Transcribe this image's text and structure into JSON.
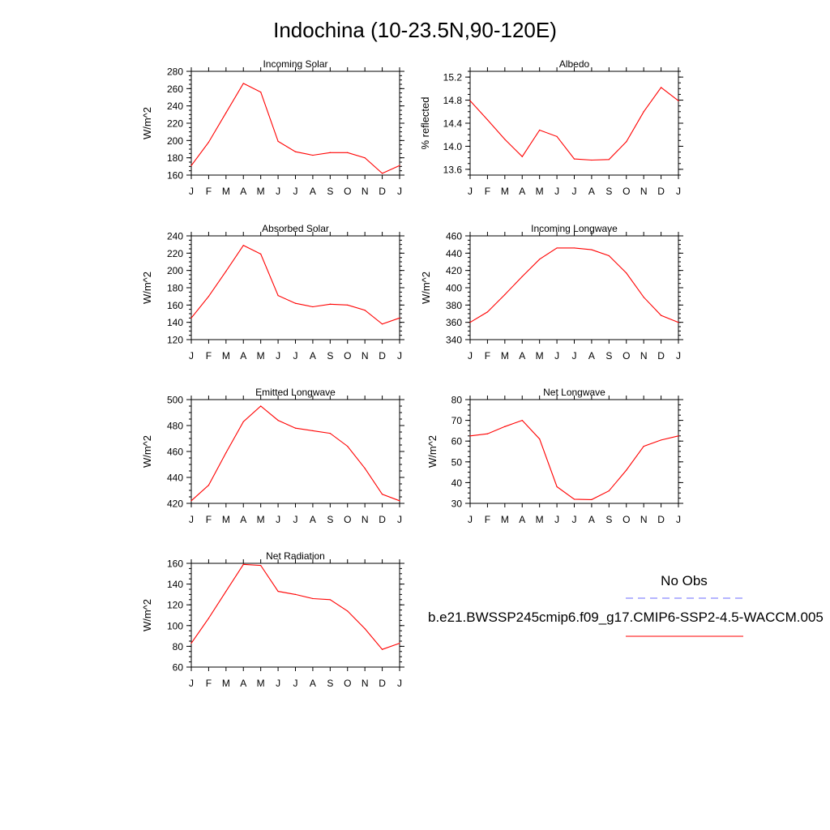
{
  "title": "Indochina (10-23.5N,90-120E)",
  "legend": {
    "obs_label": "No Obs",
    "model_label": "b.e21.BWSSP245cmip6.f09_g17.CMIP6-SSP2-4.5-WACCM.005",
    "obs_color": "#6b6bff",
    "model_color": "#ff0000"
  },
  "chart_data": [
    {
      "type": "line",
      "title": "Incoming Solar",
      "ylabel": "W/m^2",
      "categories": [
        "J",
        "F",
        "M",
        "A",
        "M",
        "J",
        "J",
        "A",
        "S",
        "O",
        "N",
        "D",
        "J"
      ],
      "ylim": [
        160,
        280
      ],
      "yticks": [
        160,
        180,
        200,
        220,
        240,
        260,
        280
      ],
      "ytick_labels": [
        "160",
        "180",
        "200",
        "220",
        "240",
        "260",
        "280"
      ],
      "series": [
        {
          "color": "#ff0000",
          "values": [
            171,
            198,
            232,
            266,
            256,
            199,
            187,
            183,
            186,
            186,
            180,
            162,
            171
          ]
        }
      ]
    },
    {
      "type": "line",
      "title": "Albedo",
      "ylabel": "% reflected",
      "categories": [
        "J",
        "F",
        "M",
        "A",
        "M",
        "J",
        "J",
        "A",
        "S",
        "O",
        "N",
        "D",
        "J"
      ],
      "ylim": [
        13.5,
        15.3
      ],
      "yticks": [
        13.6,
        14.0,
        14.4,
        14.8,
        15.2
      ],
      "ytick_labels": [
        "13.6",
        "14.0",
        "14.4",
        "14.8",
        "15.2"
      ],
      "series": [
        {
          "color": "#ff0000",
          "values": [
            14.79,
            14.46,
            14.12,
            13.82,
            14.28,
            14.17,
            13.78,
            13.76,
            13.77,
            14.08,
            14.6,
            15.02,
            14.79
          ]
        }
      ]
    },
    {
      "type": "line",
      "title": "Absorbed Solar",
      "ylabel": "W/m^2",
      "categories": [
        "J",
        "F",
        "M",
        "A",
        "M",
        "J",
        "J",
        "A",
        "S",
        "O",
        "N",
        "D",
        "J"
      ],
      "ylim": [
        120,
        240
      ],
      "yticks": [
        120,
        140,
        160,
        180,
        200,
        220,
        240
      ],
      "ytick_labels": [
        "120",
        "140",
        "160",
        "180",
        "200",
        "220",
        "240"
      ],
      "series": [
        {
          "color": "#ff0000",
          "values": [
            145,
            170,
            199,
            229,
            219,
            171,
            162,
            158,
            161,
            160,
            154,
            138,
            145
          ]
        }
      ]
    },
    {
      "type": "line",
      "title": "Incoming Longwave",
      "ylabel": "W/m^2",
      "categories": [
        "J",
        "F",
        "M",
        "A",
        "M",
        "J",
        "J",
        "A",
        "S",
        "O",
        "N",
        "D",
        "J"
      ],
      "ylim": [
        340,
        460
      ],
      "yticks": [
        340,
        360,
        380,
        400,
        420,
        440,
        460
      ],
      "ytick_labels": [
        "340",
        "360",
        "380",
        "400",
        "420",
        "440",
        "460"
      ],
      "series": [
        {
          "color": "#ff0000",
          "values": [
            360,
            372,
            392,
            413,
            433,
            446,
            446,
            444,
            437,
            417,
            389,
            368,
            360
          ]
        }
      ]
    },
    {
      "type": "line",
      "title": "Emitted Longwave",
      "ylabel": "W/m^2",
      "categories": [
        "J",
        "F",
        "M",
        "A",
        "M",
        "J",
        "J",
        "A",
        "S",
        "O",
        "N",
        "D",
        "J"
      ],
      "ylim": [
        420,
        500
      ],
      "yticks": [
        420,
        440,
        460,
        480,
        500
      ],
      "ytick_labels": [
        "420",
        "440",
        "460",
        "480",
        "500"
      ],
      "series": [
        {
          "color": "#ff0000",
          "values": [
            422,
            434,
            459,
            483,
            495,
            484,
            478,
            476,
            474,
            464,
            447,
            427,
            422
          ]
        }
      ]
    },
    {
      "type": "line",
      "title": "Net Longwave",
      "ylabel": "W/m^2",
      "categories": [
        "J",
        "F",
        "M",
        "A",
        "M",
        "J",
        "J",
        "A",
        "S",
        "O",
        "N",
        "D",
        "J"
      ],
      "ylim": [
        30,
        80
      ],
      "yticks": [
        30,
        40,
        50,
        60,
        70,
        80
      ],
      "ytick_labels": [
        "30",
        "40",
        "50",
        "60",
        "70",
        "80"
      ],
      "series": [
        {
          "color": "#ff0000",
          "values": [
            62.5,
            63.5,
            67,
            70,
            61,
            38,
            32,
            31.8,
            36,
            46,
            57.5,
            60.5,
            62.5
          ]
        }
      ]
    },
    {
      "type": "line",
      "title": "Net Radiation",
      "ylabel": "W/m^2",
      "categories": [
        "J",
        "F",
        "M",
        "A",
        "M",
        "J",
        "J",
        "A",
        "S",
        "O",
        "N",
        "D",
        "J"
      ],
      "ylim": [
        60,
        160
      ],
      "yticks": [
        60,
        80,
        100,
        120,
        140,
        160
      ],
      "ytick_labels": [
        "60",
        "80",
        "100",
        "120",
        "140",
        "160"
      ],
      "series": [
        {
          "color": "#ff0000",
          "values": [
            83,
            107,
            133,
            159,
            158,
            133,
            130,
            126,
            125,
            114,
            97,
            77,
            83
          ]
        }
      ]
    }
  ]
}
